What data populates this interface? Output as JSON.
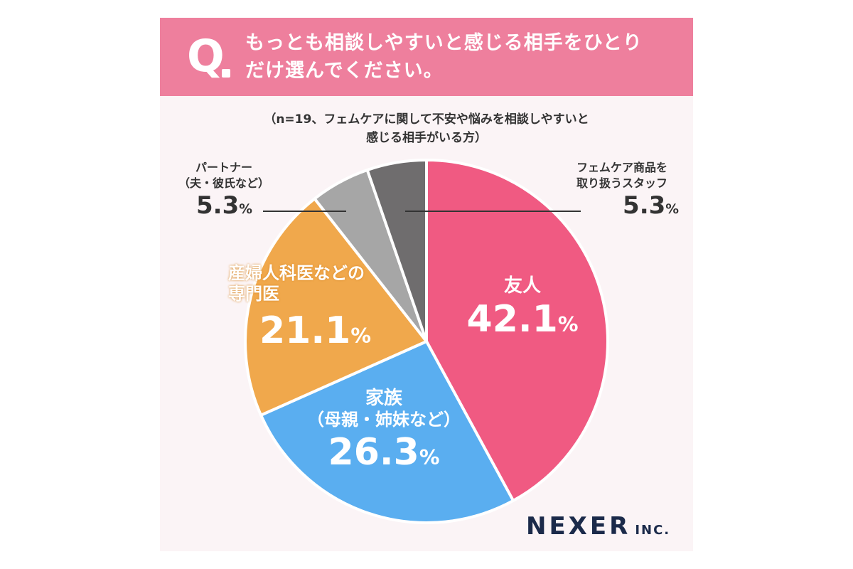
{
  "header": {
    "q_label": "Q",
    "title_line1": "もっとも相談しやすいと感じる相手をひとり",
    "title_line2": "だけ選んでください。"
  },
  "subtitle": {
    "line1": "（n=19、フェムケアに関して不安や悩みを相談しやすいと",
    "line2": "感じる相手がいる方）"
  },
  "chart_data": {
    "type": "pie",
    "title": "もっとも相談しやすいと感じる相手をひとりだけ選んでください。",
    "unit": "%",
    "slices": [
      {
        "label": "友人",
        "label_line2": "",
        "value": 42.1,
        "color": "#f05a82"
      },
      {
        "label": "家族",
        "label_line2": "（母親・姉妹など）",
        "value": 26.3,
        "color": "#5aaef0"
      },
      {
        "label": "産婦人科医などの",
        "label_line2": "専門医",
        "value": 21.1,
        "color": "#f0a84c"
      },
      {
        "label": "パートナー",
        "label_line2": "（夫・彼氏など）",
        "value": 5.3,
        "color": "#a6a6a6"
      },
      {
        "label": "フェムケア商品を",
        "label_line2": "取り扱うスタッフ",
        "value": 5.3,
        "color": "#6f6d6e"
      }
    ]
  },
  "labels": {
    "s0_pct": "42.1",
    "s1_pct": "26.3",
    "s2_pct": "21.1",
    "s3_pct": "5.3",
    "s4_pct": "5.3",
    "pct_sign": "%"
  },
  "logo": {
    "main": "NEXER",
    "suffix": "INC."
  }
}
